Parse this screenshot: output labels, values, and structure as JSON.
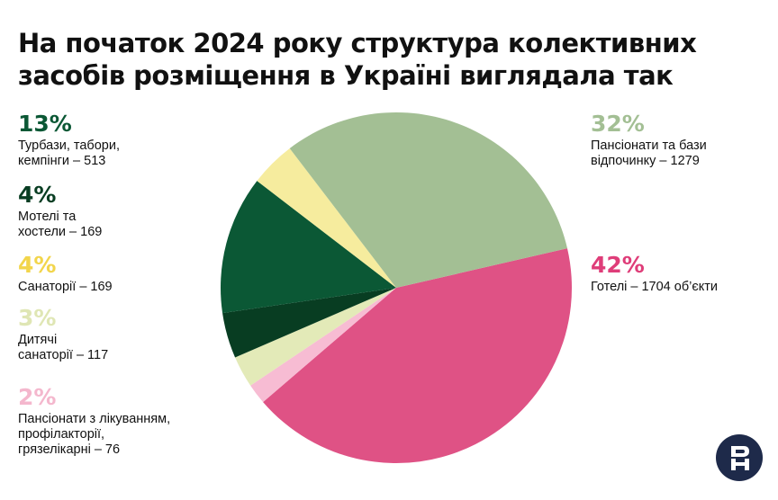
{
  "title": "На початок 2024 року структура колективних засобів розміщення в Україні виглядала так",
  "chart_data": {
    "type": "pie",
    "title": "На початок 2024 року структура колективних засобів розміщення в Україні виглядала так",
    "slices": [
      {
        "label": "Готелі – 1704 об’єкти",
        "percent": "42%",
        "value": 1704,
        "color": "#df5285"
      },
      {
        "label": "Пансіонати з лікуванням,\nпрофілакторії,\nгрязелікарні – 76",
        "percent": "2%",
        "value": 76,
        "color": "#f7bcd3"
      },
      {
        "label": "Дитячі\nсанаторії – 117",
        "percent": "3%",
        "value": 117,
        "color": "#e3eab8"
      },
      {
        "label": "Мотелі та\nхостели – 169",
        "percent": "4%",
        "value": 169,
        "color": "#083d22"
      },
      {
        "label": "Турбази, табори,\nкемпінги – 513",
        "percent": "13%",
        "value": 513,
        "color": "#0b5835"
      },
      {
        "label": "Санаторії – 169",
        "percent": "4%",
        "value": 169,
        "color": "#f6ec9e"
      },
      {
        "label": "Пансіонати та бази\nвідпочинку – 1279",
        "percent": "32%",
        "value": 1279,
        "color": "#a3bf94"
      }
    ]
  },
  "legend_colors": {
    "turbazy": "#0b5835",
    "motels": "#083d22",
    "sanatorii": "#f2d54b",
    "dytyachi": "#dfe6b4",
    "pansionaty_likuv": "#f4b7cd",
    "pansionaty_bazy": "#a3bf94",
    "hotels": "#df3d79"
  },
  "logo": {
    "text": "RH",
    "icon": "rh-logo-icon"
  }
}
